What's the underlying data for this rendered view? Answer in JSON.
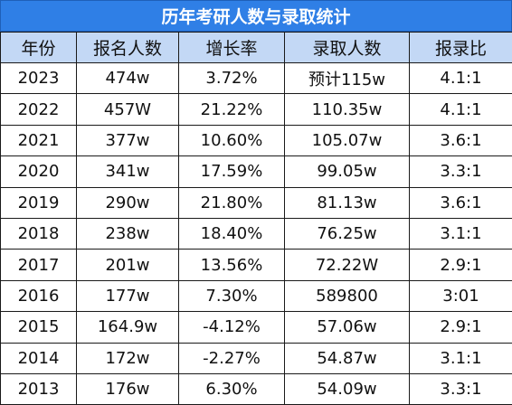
{
  "title": "历年考研人数与录取统计",
  "headers": [
    "年份",
    "报名人数",
    "增长率",
    "录取人数",
    "报录比"
  ],
  "rows": [
    [
      "2023",
      "474w",
      "3.72%",
      "预计115w",
      "4.1:1"
    ],
    [
      "2022",
      "457W",
      "21.22%",
      "110.35w",
      "4.1:1"
    ],
    [
      "2021",
      "377w",
      "10.60%",
      "105.07w",
      "3.6:1"
    ],
    [
      "2020",
      "341w",
      "17.59%",
      "99.05w",
      "3.3:1"
    ],
    [
      "2019",
      "290w",
      "21.80%",
      "81.13w",
      "3.6:1"
    ],
    [
      "2018",
      "238w",
      "18.40%",
      "76.25w",
      "3.1:1"
    ],
    [
      "2017",
      "201w",
      "13.56%",
      "72.22W",
      "2.9:1"
    ],
    [
      "2016",
      "177w",
      "7.30%",
      "589800",
      "3:01"
    ],
    [
      "2015",
      "164.9w",
      "-4.12%",
      "57.06w",
      "2.9:1"
    ],
    [
      "2014",
      "172w",
      "-2.27%",
      "54.87w",
      "3.1:1"
    ],
    [
      "2013",
      "176w",
      "6.30%",
      "54.09w",
      "3.3:1"
    ]
  ],
  "colors": {
    "title_bg": "#2f7fe6",
    "header_bg": "#c3d8f5",
    "title_text": "#ffffff"
  }
}
